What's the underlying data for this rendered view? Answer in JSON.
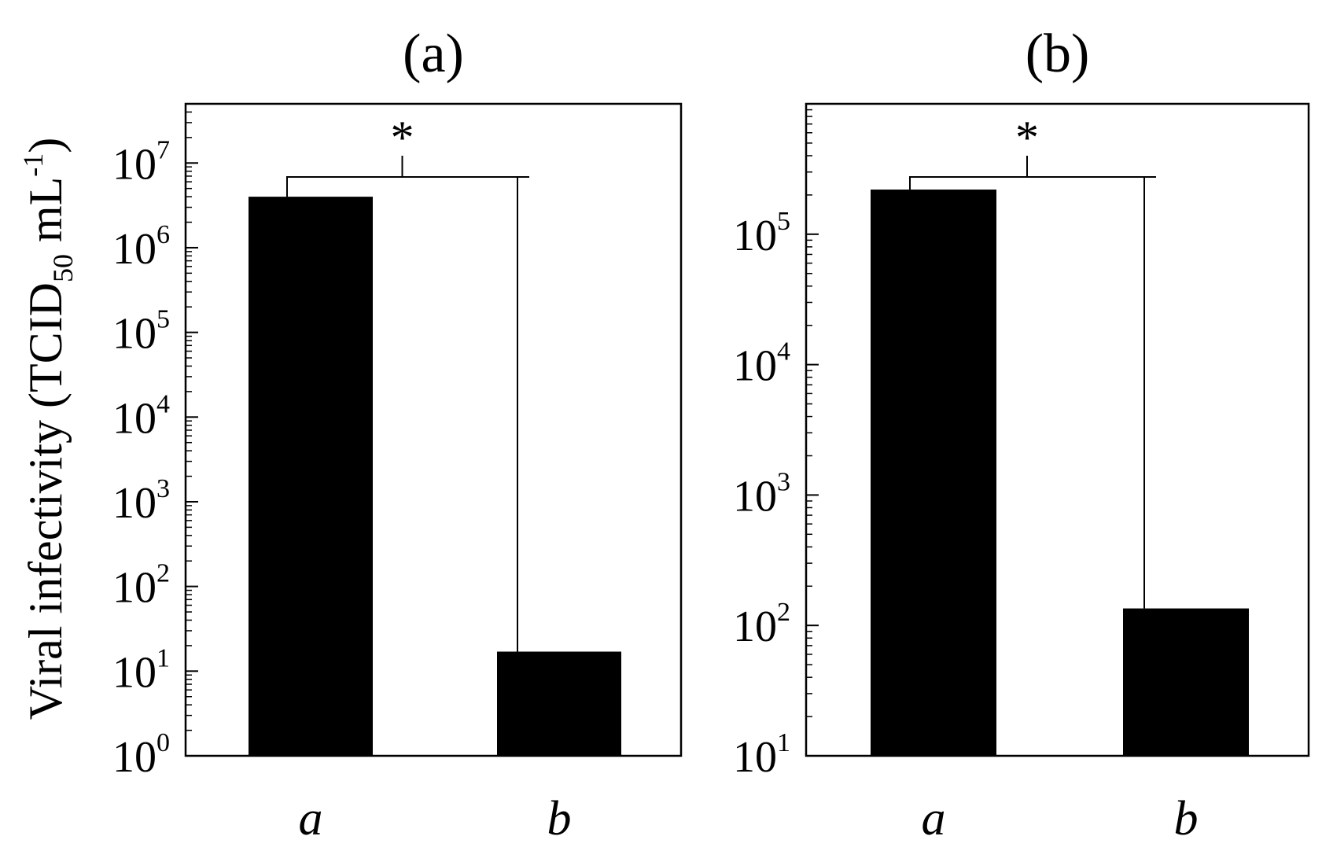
{
  "figure": {
    "ylabel": {
      "main": "Viral infectivity (TCID",
      "subscript": "50",
      "unit": " mL",
      "superscript": "-1",
      "close": ")"
    }
  },
  "chart_data": [
    {
      "type": "bar",
      "title": "(a)",
      "categories": [
        "a",
        "b"
      ],
      "values": [
        4000000,
        17
      ],
      "yscale": "log",
      "ylim": [
        1,
        50000000
      ],
      "yticks": [
        {
          "base": "10",
          "exp": "0",
          "value": 1
        },
        {
          "base": "10",
          "exp": "1",
          "value": 10
        },
        {
          "base": "10",
          "exp": "2",
          "value": 100
        },
        {
          "base": "10",
          "exp": "3",
          "value": 1000
        },
        {
          "base": "10",
          "exp": "4",
          "value": 10000
        },
        {
          "base": "10",
          "exp": "5",
          "value": 100000
        },
        {
          "base": "10",
          "exp": "6",
          "value": 1000000
        },
        {
          "base": "10",
          "exp": "7",
          "value": 10000000
        }
      ],
      "significance": "*",
      "bar_color": "#000000",
      "grid": false
    },
    {
      "type": "bar",
      "title": "(b)",
      "categories": [
        "a",
        "b"
      ],
      "values": [
        220000,
        135
      ],
      "yscale": "log",
      "ylim": [
        10,
        1000000
      ],
      "yticks": [
        {
          "base": "10",
          "exp": "1",
          "value": 10
        },
        {
          "base": "10",
          "exp": "2",
          "value": 100
        },
        {
          "base": "10",
          "exp": "3",
          "value": 1000
        },
        {
          "base": "10",
          "exp": "4",
          "value": 10000
        },
        {
          "base": "10",
          "exp": "5",
          "value": 100000
        }
      ],
      "significance": "*",
      "bar_color": "#000000",
      "grid": false
    }
  ]
}
